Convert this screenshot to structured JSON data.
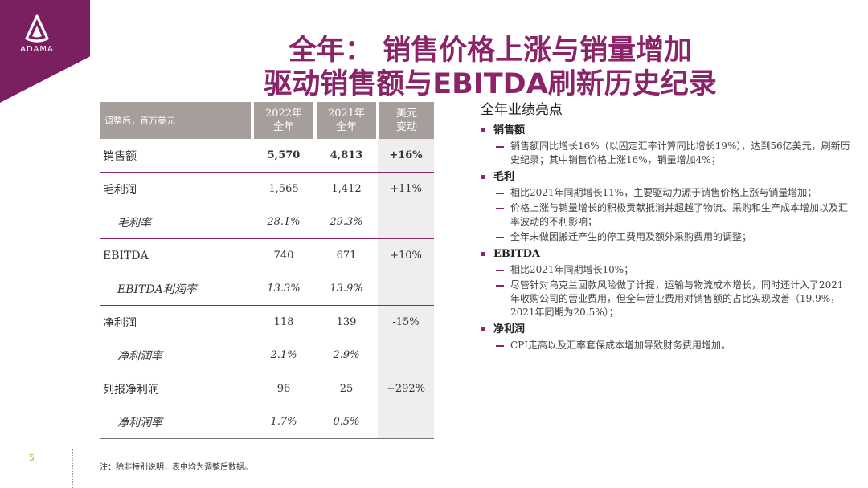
{
  "brand": {
    "logo_text": "ADAMA",
    "color": "#7a2060",
    "title_color": "#8a2368"
  },
  "title": {
    "line1": "全年： 销售价格上涨与销量增加",
    "line2": "驱动销售额与EBITDA刷新历史纪录"
  },
  "table": {
    "header": {
      "unit": "调整后，百万美元",
      "col1": [
        "2022年",
        "全年"
      ],
      "col2": [
        "2021年",
        "全年"
      ],
      "col3": [
        "美元",
        "变动"
      ]
    },
    "rows": [
      {
        "label": "销售额",
        "v2022": "5,570",
        "v2021": "4,813",
        "change": "+16%"
      },
      {
        "label": "毛利润",
        "v2022": "1,565",
        "v2021": "1,412",
        "change": "+11%"
      },
      {
        "label": "毛利率",
        "v2022": "28.1%",
        "v2021": "29.3%",
        "change": ""
      },
      {
        "label": "EBITDA",
        "v2022": "740",
        "v2021": "671",
        "change": "+10%"
      },
      {
        "label": "EBITDA利润率",
        "v2022": "13.3%",
        "v2021": "13.9%",
        "change": ""
      },
      {
        "label": "净利润",
        "v2022": "118",
        "v2021": "139",
        "change": "-15%"
      },
      {
        "label": "净利润率",
        "v2022": "2.1%",
        "v2021": "2.9%",
        "change": ""
      },
      {
        "label": "列报净利润",
        "v2022": "96",
        "v2021": "25",
        "change": "+292%"
      },
      {
        "label": "净利润率",
        "v2022": "1.7%",
        "v2021": "0.5%",
        "change": ""
      }
    ]
  },
  "highlights": {
    "title": "全年业绩亮点",
    "sections": [
      {
        "heading": "销售额",
        "items": [
          "销售额同比增长16%（以固定汇率计算同比增长19%），达到56亿美元，刷新历史纪录；其中销售价格上涨16%，销量增加4%；"
        ]
      },
      {
        "heading": "毛利",
        "items": [
          "相比2021年同期增长11%，主要驱动力源于销售价格上涨与销量增加；",
          "价格上涨与销量增长的积极贡献抵消并超越了物流、采购和生产成本增加以及汇率波动的不利影响；",
          "全年未做因搬迁产生的停工费用及额外采购费用的调整；"
        ]
      },
      {
        "heading": "EBITDA",
        "items": [
          "相比2021年同期增长10%；",
          "尽管针对乌克兰回款风险做了计提，运输与物流成本增长，同时还计入了2021年收购公司的营业费用，但全年营业费用对销售额的占比实现改善（19.9%，2021年同期为20.5%）；"
        ]
      },
      {
        "heading": "净利润",
        "items": [
          "CPI走高以及汇率套保成本增加导致财务费用增加。"
        ]
      }
    ]
  },
  "footer": {
    "page_number": "5",
    "note": "注：除非特别说明，表中均为调整后数据。"
  }
}
